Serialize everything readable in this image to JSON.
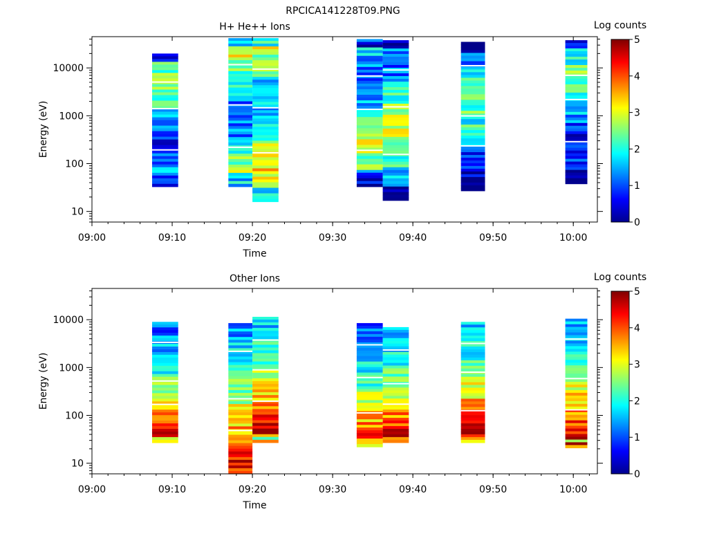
{
  "figure_title": "RPCICA141228T09.PNG",
  "chart_data": [
    {
      "type": "heatmap",
      "title": "H+ He++ Ions",
      "xlabel": "Time",
      "ylabel": "Energy (eV)",
      "x_scale": "time",
      "y_scale": "log",
      "xlim": [
        "09:00",
        "10:03"
      ],
      "ylim": [
        6,
        45000
      ],
      "x_ticks": [
        "09:00",
        "09:10",
        "09:20",
        "09:30",
        "09:40",
        "09:50",
        "10:00"
      ],
      "y_ticks": [
        "10",
        "100",
        "1000",
        "10000"
      ],
      "colorbar": {
        "label": "Log counts",
        "range": [
          0,
          5
        ],
        "ticks": [
          "0",
          "1",
          "2",
          "3",
          "4",
          "5"
        ]
      },
      "columns": [
        {
          "t_start": "09:07:30",
          "t_end": "09:10:45",
          "e_min": 33,
          "e_max": 20000,
          "mean": 1.6
        },
        {
          "t_start": "09:17:00",
          "t_end": "09:20:00",
          "e_min": 33,
          "e_max": 42000,
          "mean": 2.0
        },
        {
          "t_start": "09:20:00",
          "t_end": "09:23:15",
          "e_min": 16,
          "e_max": 42000,
          "mean": 2.4
        },
        {
          "t_start": "09:33:00",
          "t_end": "09:36:15",
          "e_min": 33,
          "e_max": 40000,
          "mean": 1.9
        },
        {
          "t_start": "09:36:15",
          "t_end": "09:39:30",
          "e_min": 17,
          "e_max": 38000,
          "mean": 2.0
        },
        {
          "t_start": "09:46:00",
          "t_end": "09:49:00",
          "e_min": 27,
          "e_max": 35000,
          "mean": 1.5
        },
        {
          "t_start": "09:59:00",
          "t_end": "10:01:45",
          "e_min": 38,
          "e_max": 38000,
          "mean": 1.6
        }
      ]
    },
    {
      "type": "heatmap",
      "title": "Other Ions",
      "xlabel": "Time",
      "ylabel": "Energy (eV)",
      "x_scale": "time",
      "y_scale": "log",
      "xlim": [
        "09:00",
        "10:03"
      ],
      "ylim": [
        6,
        45000
      ],
      "x_ticks": [
        "09:00",
        "09:10",
        "09:20",
        "09:30",
        "09:40",
        "09:50",
        "10:00"
      ],
      "y_ticks": [
        "10",
        "100",
        "1000",
        "10000"
      ],
      "colorbar": {
        "label": "Log counts",
        "range": [
          0,
          5
        ],
        "ticks": [
          "0",
          "1",
          "2",
          "3",
          "4",
          "5"
        ]
      },
      "columns": [
        {
          "t_start": "09:07:30",
          "t_end": "09:10:45",
          "e_min": 27,
          "e_max": 9000,
          "mean": 2.7
        },
        {
          "t_start": "09:17:00",
          "t_end": "09:20:00",
          "e_min": 6,
          "e_max": 8500,
          "mean": 3.0
        },
        {
          "t_start": "09:20:00",
          "t_end": "09:23:15",
          "e_min": 27,
          "e_max": 11500,
          "mean": 3.2
        },
        {
          "t_start": "09:33:00",
          "t_end": "09:36:15",
          "e_min": 22,
          "e_max": 8500,
          "mean": 2.6
        },
        {
          "t_start": "09:36:15",
          "t_end": "09:39:30",
          "e_min": 27,
          "e_max": 7000,
          "mean": 2.9
        },
        {
          "t_start": "09:46:00",
          "t_end": "09:49:00",
          "e_min": 27,
          "e_max": 9000,
          "mean": 3.1
        },
        {
          "t_start": "09:59:00",
          "t_end": "10:01:45",
          "e_min": 21,
          "e_max": 10500,
          "mean": 3.1
        }
      ]
    }
  ]
}
